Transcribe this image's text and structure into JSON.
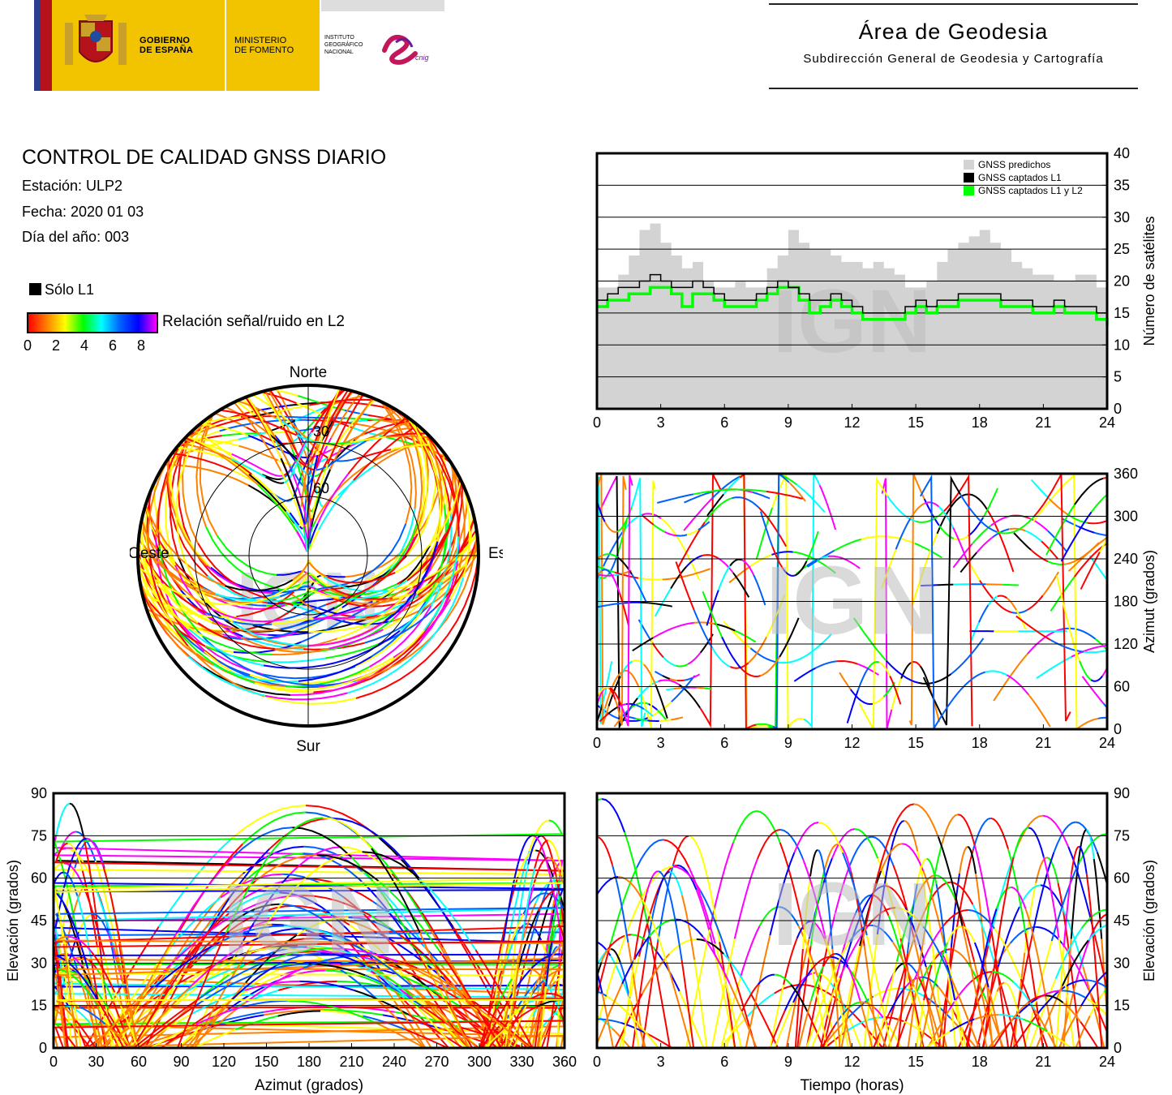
{
  "header": {
    "gobierno": "GOBIERNO\nDE ESPAÑA",
    "ministerio": "MINISTERIO\nDE FOMENTO",
    "instituto": "INSTITUTO\nGEOGRÁFICO\nNACIONAL",
    "cnig": "cnig",
    "area_title": "Área de Geodesia",
    "area_subtitle": "Subdirección General de Geodesia y Cartografía"
  },
  "report": {
    "title": "CONTROL DE CALIDAD GNSS DIARIO",
    "station": "Estación: ULP2",
    "date": "Fecha: 2020 01 03",
    "doy": "Día del año: 003"
  },
  "legend": {
    "l1_only": "Sólo L1",
    "snr_label": "Relación señal/ruido en L2",
    "snr_ticks": [
      "0",
      "2",
      "4",
      "6",
      "8"
    ]
  },
  "colors": {
    "snr_scale": [
      "#ff0000",
      "#ff8000",
      "#ffff00",
      "#00ff00",
      "#00ffff",
      "#0060ff",
      "#0000ff",
      "#ff00ff"
    ],
    "l1_only": "#000000",
    "predicted": "#d3d3d3",
    "l1l2": "#00ff00"
  },
  "watermark": "IGN",
  "chart_data": [
    {
      "id": "skyplot",
      "type": "scatter",
      "title": "",
      "direction_labels": {
        "north": "Norte",
        "south": "Sur",
        "west": "Oeste",
        "east": "Este"
      },
      "elevation_rings": [
        "30",
        "60"
      ]
    },
    {
      "id": "num_sats",
      "type": "area",
      "x_ticks": [
        "0",
        "3",
        "6",
        "9",
        "12",
        "15",
        "18",
        "21",
        "24"
      ],
      "y_ticks": [
        "0",
        "5",
        "10",
        "15",
        "20",
        "25",
        "30",
        "35",
        "40"
      ],
      "xlim": [
        0,
        24
      ],
      "ylim": [
        0,
        40
      ],
      "ylabel": "Número de satélites",
      "grid": true,
      "legend_position": "top-right",
      "series": [
        {
          "name": "GNSS predichos",
          "color": "#d3d3d3",
          "x": [
            0,
            1,
            1.5,
            2,
            2.5,
            3,
            3.5,
            4,
            4.5,
            5,
            5.5,
            6,
            6.5,
            7,
            7.5,
            8,
            8.5,
            9,
            9.5,
            10,
            10.5,
            11,
            11.5,
            12,
            12.5,
            13,
            13.5,
            14,
            14.5,
            15,
            15.5,
            16,
            16.5,
            17,
            17.5,
            18,
            18.5,
            19,
            19.5,
            20,
            20.5,
            21,
            21.5,
            22,
            22.5,
            23,
            23.5,
            24
          ],
          "values": [
            19,
            21,
            24,
            28,
            29,
            26,
            24,
            22,
            23,
            20,
            19,
            19,
            20,
            19,
            19,
            22,
            24,
            28,
            26,
            25,
            25,
            24,
            23,
            23,
            22,
            23,
            22,
            21,
            19,
            19,
            20,
            23,
            25,
            26,
            27,
            28,
            26,
            25,
            23,
            22,
            21,
            21,
            20,
            20,
            21,
            21,
            19,
            18
          ]
        },
        {
          "name": "GNSS captados L1",
          "color": "#000000",
          "x": [
            0,
            0.5,
            1,
            1.5,
            2,
            2.5,
            3,
            3.5,
            4,
            4.5,
            5,
            5.5,
            6,
            6.5,
            7,
            7.5,
            8,
            8.5,
            9,
            9.5,
            10,
            10.5,
            11,
            11.5,
            12,
            12.5,
            13,
            13.5,
            14,
            14.5,
            15,
            15.5,
            16,
            16.5,
            17,
            17.5,
            18,
            18.5,
            19,
            19.5,
            20,
            20.5,
            21,
            21.5,
            22,
            22.5,
            23,
            23.5,
            24
          ],
          "values": [
            17,
            18,
            19,
            19,
            20,
            21,
            20,
            19,
            19,
            20,
            19,
            18,
            17,
            17,
            17,
            18,
            19,
            20,
            19,
            18,
            17,
            17,
            18,
            17,
            16,
            15,
            15,
            15,
            15,
            16,
            17,
            16,
            17,
            17,
            18,
            18,
            18,
            18,
            17,
            17,
            17,
            16,
            16,
            17,
            16,
            16,
            16,
            15,
            15
          ]
        },
        {
          "name": "GNSS captados L1 y L2",
          "color": "#00ff00",
          "x": [
            0,
            0.5,
            1,
            1.5,
            2,
            2.5,
            3,
            3.5,
            4,
            4.5,
            5,
            5.5,
            6,
            6.5,
            7,
            7.5,
            8,
            8.5,
            9,
            9.5,
            10,
            10.5,
            11,
            11.5,
            12,
            12.5,
            13,
            13.5,
            14,
            14.5,
            15,
            15.5,
            16,
            16.5,
            17,
            17.5,
            18,
            18.5,
            19,
            19.5,
            20,
            20.5,
            21,
            21.5,
            22,
            22.5,
            23,
            23.5,
            24
          ],
          "values": [
            16,
            17,
            17,
            18,
            18,
            19,
            19,
            18,
            16,
            18,
            18,
            17,
            16,
            16,
            16,
            17,
            18,
            19,
            19,
            17,
            15,
            16,
            17,
            16,
            15,
            14,
            14,
            14,
            14,
            15,
            16,
            15,
            16,
            16,
            17,
            17,
            17,
            17,
            16,
            16,
            16,
            15,
            15,
            16,
            15,
            15,
            15,
            14,
            13
          ]
        }
      ]
    },
    {
      "id": "azimuth_time",
      "type": "scatter",
      "x_ticks": [
        "0",
        "3",
        "6",
        "9",
        "12",
        "15",
        "18",
        "21",
        "24"
      ],
      "y_ticks": [
        "0",
        "60",
        "120",
        "180",
        "240",
        "300",
        "360"
      ],
      "xlim": [
        0,
        24
      ],
      "ylim": [
        0,
        360
      ],
      "ylabel": "Azimut (grados)",
      "grid": true
    },
    {
      "id": "elevation_azimuth",
      "type": "scatter",
      "x_ticks": [
        "0",
        "30",
        "60",
        "90",
        "120",
        "150",
        "180",
        "210",
        "240",
        "270",
        "300",
        "330",
        "360"
      ],
      "y_ticks": [
        "0",
        "15",
        "30",
        "45",
        "60",
        "75",
        "90"
      ],
      "xlim": [
        0,
        360
      ],
      "ylim": [
        0,
        90
      ],
      "xlabel": "Azimut (grados)",
      "ylabel": "Elevación (grados)",
      "grid": true
    },
    {
      "id": "elevation_time",
      "type": "scatter",
      "x_ticks": [
        "0",
        "3",
        "6",
        "9",
        "12",
        "15",
        "18",
        "21",
        "24"
      ],
      "y_ticks": [
        "0",
        "15",
        "30",
        "45",
        "60",
        "75",
        "90"
      ],
      "xlim": [
        0,
        24
      ],
      "ylim": [
        0,
        90
      ],
      "xlabel": "Tiempo (horas)",
      "ylabel": "Elevación (grados)",
      "grid": true
    }
  ]
}
